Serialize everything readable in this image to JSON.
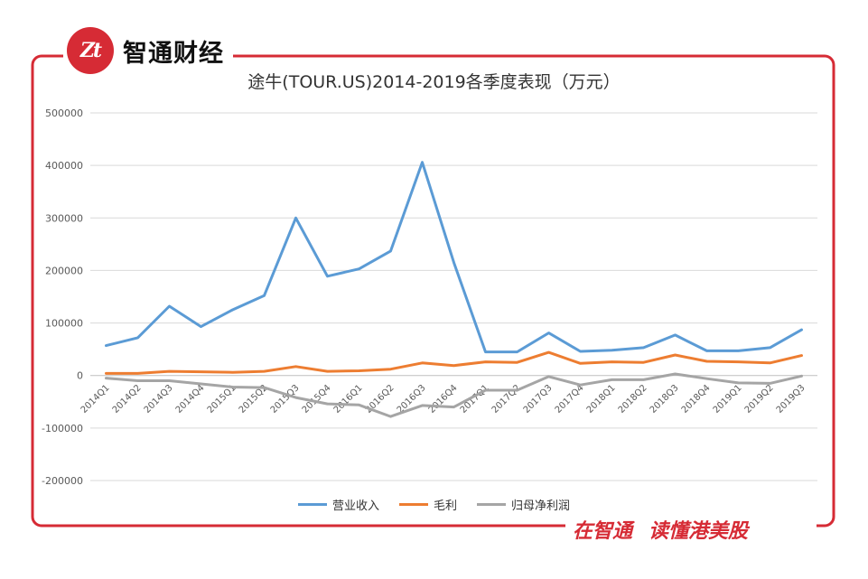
{
  "brand": {
    "logo_text": "Zt",
    "name": "智通财经"
  },
  "footer": {
    "slogan_left": "在智通",
    "slogan_right": "读懂港美股"
  },
  "colors": {
    "frame": "#d62b35",
    "grid": "#d9d9d9",
    "axis": "#bfbfbf"
  },
  "chart_data": {
    "type": "line",
    "title": "途牛(TOUR.US)2014-2019各季度表现（万元）",
    "xlabel": "",
    "ylabel": "",
    "ylim": [
      -200000,
      500000
    ],
    "yticks": [
      500000,
      400000,
      300000,
      200000,
      100000,
      0,
      -100000,
      -200000
    ],
    "grid": true,
    "legend_position": "bottom",
    "categories": [
      "2014Q1",
      "2014Q2",
      "2014Q3",
      "2014Q4",
      "2015Q1",
      "2015Q2",
      "2015Q3",
      "2015Q4",
      "2016Q1",
      "2016Q2",
      "2016Q3",
      "2016Q4",
      "2017Q1",
      "2017Q2",
      "2017Q3",
      "2017Q4",
      "2018Q1",
      "2018Q2",
      "2018Q3",
      "2018Q4",
      "2019Q1",
      "2019Q2",
      "2019Q3"
    ],
    "series": [
      {
        "name": "营业收入",
        "color": "#5b9bd5",
        "values": [
          57000,
          72000,
          132000,
          93000,
          125000,
          152000,
          300000,
          189000,
          203000,
          237000,
          406000,
          215000,
          45000,
          45000,
          81000,
          46000,
          48000,
          53000,
          77000,
          47000,
          47000,
          53000,
          87000
        ]
      },
      {
        "name": "毛利",
        "color": "#ed7d31",
        "values": [
          4000,
          4000,
          8000,
          7000,
          6000,
          8000,
          17000,
          8000,
          9000,
          12000,
          24000,
          19000,
          26000,
          25000,
          44000,
          23000,
          26000,
          25000,
          39000,
          27000,
          26000,
          24000,
          38000
        ]
      },
      {
        "name": "归母净利润",
        "color": "#a5a5a5",
        "values": [
          -5000,
          -10000,
          -10000,
          -16000,
          -22000,
          -23000,
          -42000,
          -54000,
          -56000,
          -78000,
          -57000,
          -60000,
          -28000,
          -28000,
          -2000,
          -18000,
          -8000,
          -8000,
          3000,
          -6000,
          -14000,
          -15000,
          -1000
        ]
      }
    ]
  }
}
